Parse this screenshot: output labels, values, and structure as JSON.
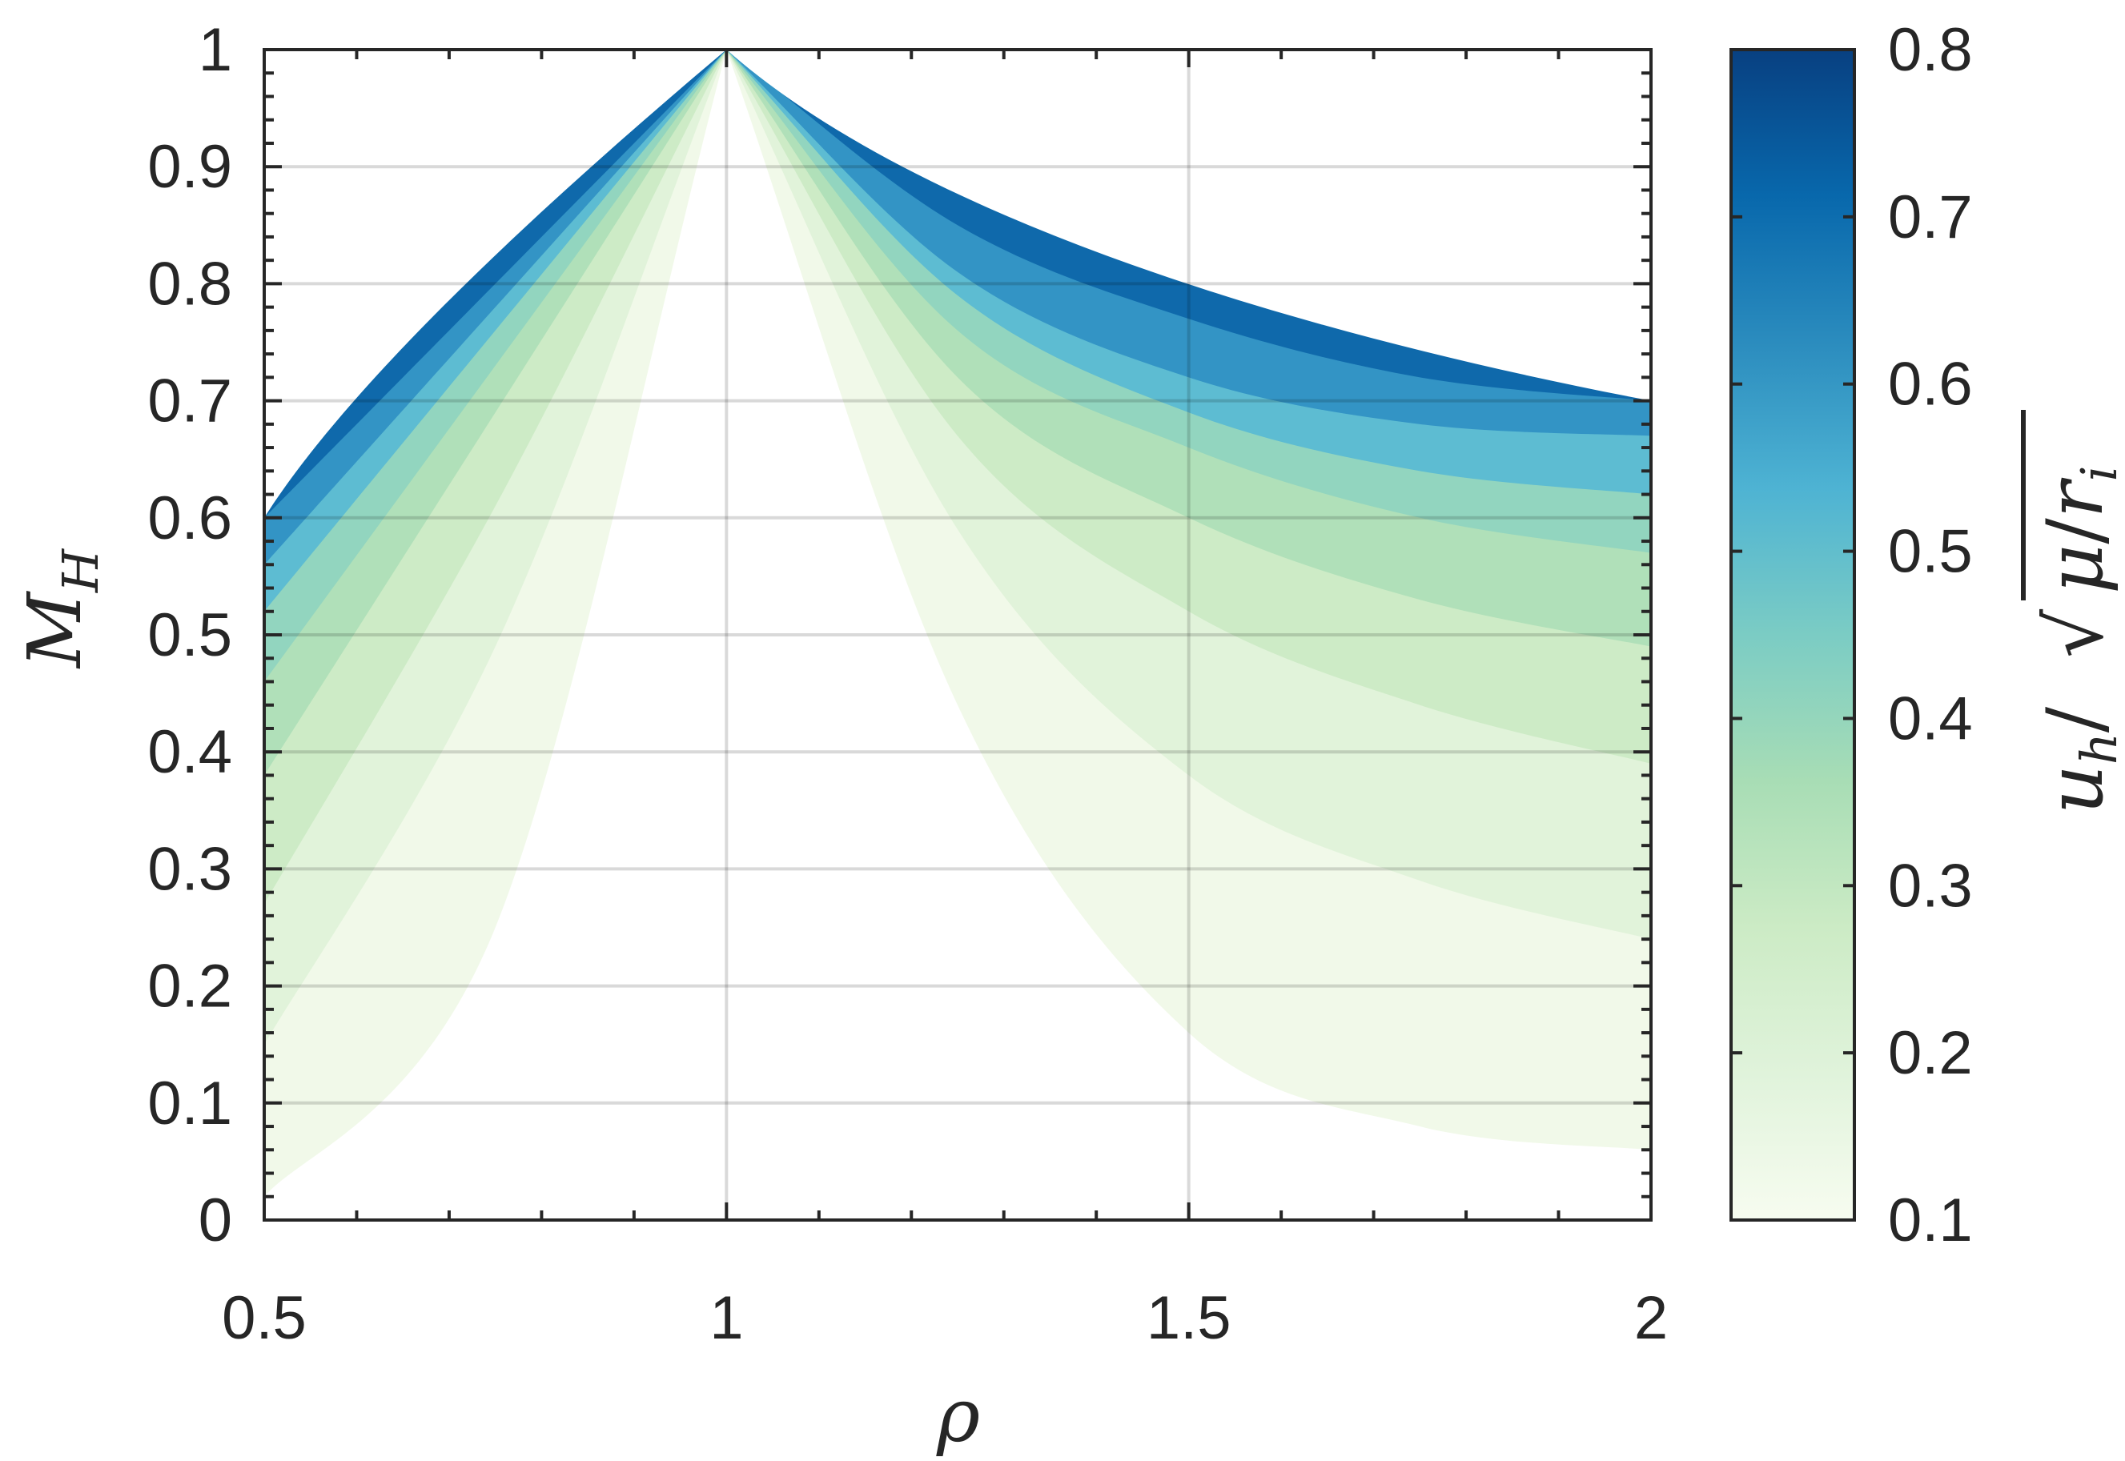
{
  "chart_data": {
    "type": "area",
    "title": "",
    "xlabel": "ρ",
    "ylabel": "M_H",
    "xlim": [
      0.5,
      2
    ],
    "ylim": [
      0,
      1
    ],
    "xticks": [
      0.5,
      1,
      1.5,
      2
    ],
    "yticks": [
      0,
      0.1,
      0.2,
      0.3,
      0.4,
      0.5,
      0.6,
      0.7,
      0.8,
      0.9,
      1
    ],
    "grid": true,
    "colorbar": {
      "label": "u_h/√(μ/r_i)",
      "range": [
        0.1,
        0.8
      ],
      "ticks": [
        0.1,
        0.2,
        0.3,
        0.4,
        0.5,
        0.6,
        0.7,
        0.8
      ],
      "colors": [
        "#f7fcf0",
        "#e0f3db",
        "#ccebc5",
        "#a8ddb5",
        "#7bccc4",
        "#4eb3d3",
        "#2b8cbe",
        "#0868ac",
        "#084081"
      ]
    },
    "series": [
      {
        "level": 0.1,
        "color": "#f1f9e9",
        "x": [
          0.5,
          0.75,
          1,
          1.25,
          1.5,
          1.75,
          2
        ],
        "values": [
          0.02,
          0.25,
          1,
          0.44,
          0.16,
          0.08,
          0.06
        ]
      },
      {
        "level": 0.2,
        "color": "#e1f3da",
        "x": [
          0.5,
          0.75,
          1,
          1.25,
          1.5,
          1.75,
          2
        ],
        "values": [
          0.15,
          0.49,
          1,
          0.59,
          0.38,
          0.29,
          0.24
        ]
      },
      {
        "level": 0.3,
        "color": "#cdebc6",
        "x": [
          0.5,
          0.75,
          1,
          1.25,
          1.5,
          1.75,
          2
        ],
        "values": [
          0.27,
          0.61,
          1,
          0.67,
          0.52,
          0.44,
          0.39
        ]
      },
      {
        "level": 0.4,
        "color": "#b0e0b9",
        "x": [
          0.5,
          0.75,
          1,
          1.25,
          1.5,
          1.75,
          2
        ],
        "values": [
          0.38,
          0.69,
          1,
          0.72,
          0.6,
          0.53,
          0.49
        ]
      },
      {
        "level": 0.5,
        "color": "#92d5bf",
        "x": [
          0.5,
          0.75,
          1,
          1.25,
          1.5,
          1.75,
          2
        ],
        "values": [
          0.46,
          0.73,
          1,
          0.76,
          0.66,
          0.6,
          0.57
        ]
      },
      {
        "level": 0.6,
        "color": "#5dbcd2",
        "x": [
          0.5,
          0.75,
          1,
          1.25,
          1.5,
          1.75,
          2
        ],
        "values": [
          0.52,
          0.76,
          1,
          0.79,
          0.69,
          0.64,
          0.62
        ]
      },
      {
        "level": 0.7,
        "color": "#3394c5",
        "x": [
          0.5,
          0.75,
          1,
          1.25,
          1.5,
          1.75,
          2
        ],
        "values": [
          0.56,
          0.78,
          1,
          0.81,
          0.72,
          0.68,
          0.67
        ]
      },
      {
        "level": 0.8,
        "color": "#0f69ab",
        "x": [
          0.5,
          0.75,
          1,
          1.25,
          1.5,
          1.75,
          2
        ],
        "values": [
          0.6,
          0.8,
          1,
          0.85,
          0.77,
          0.72,
          0.7
        ]
      }
    ]
  }
}
